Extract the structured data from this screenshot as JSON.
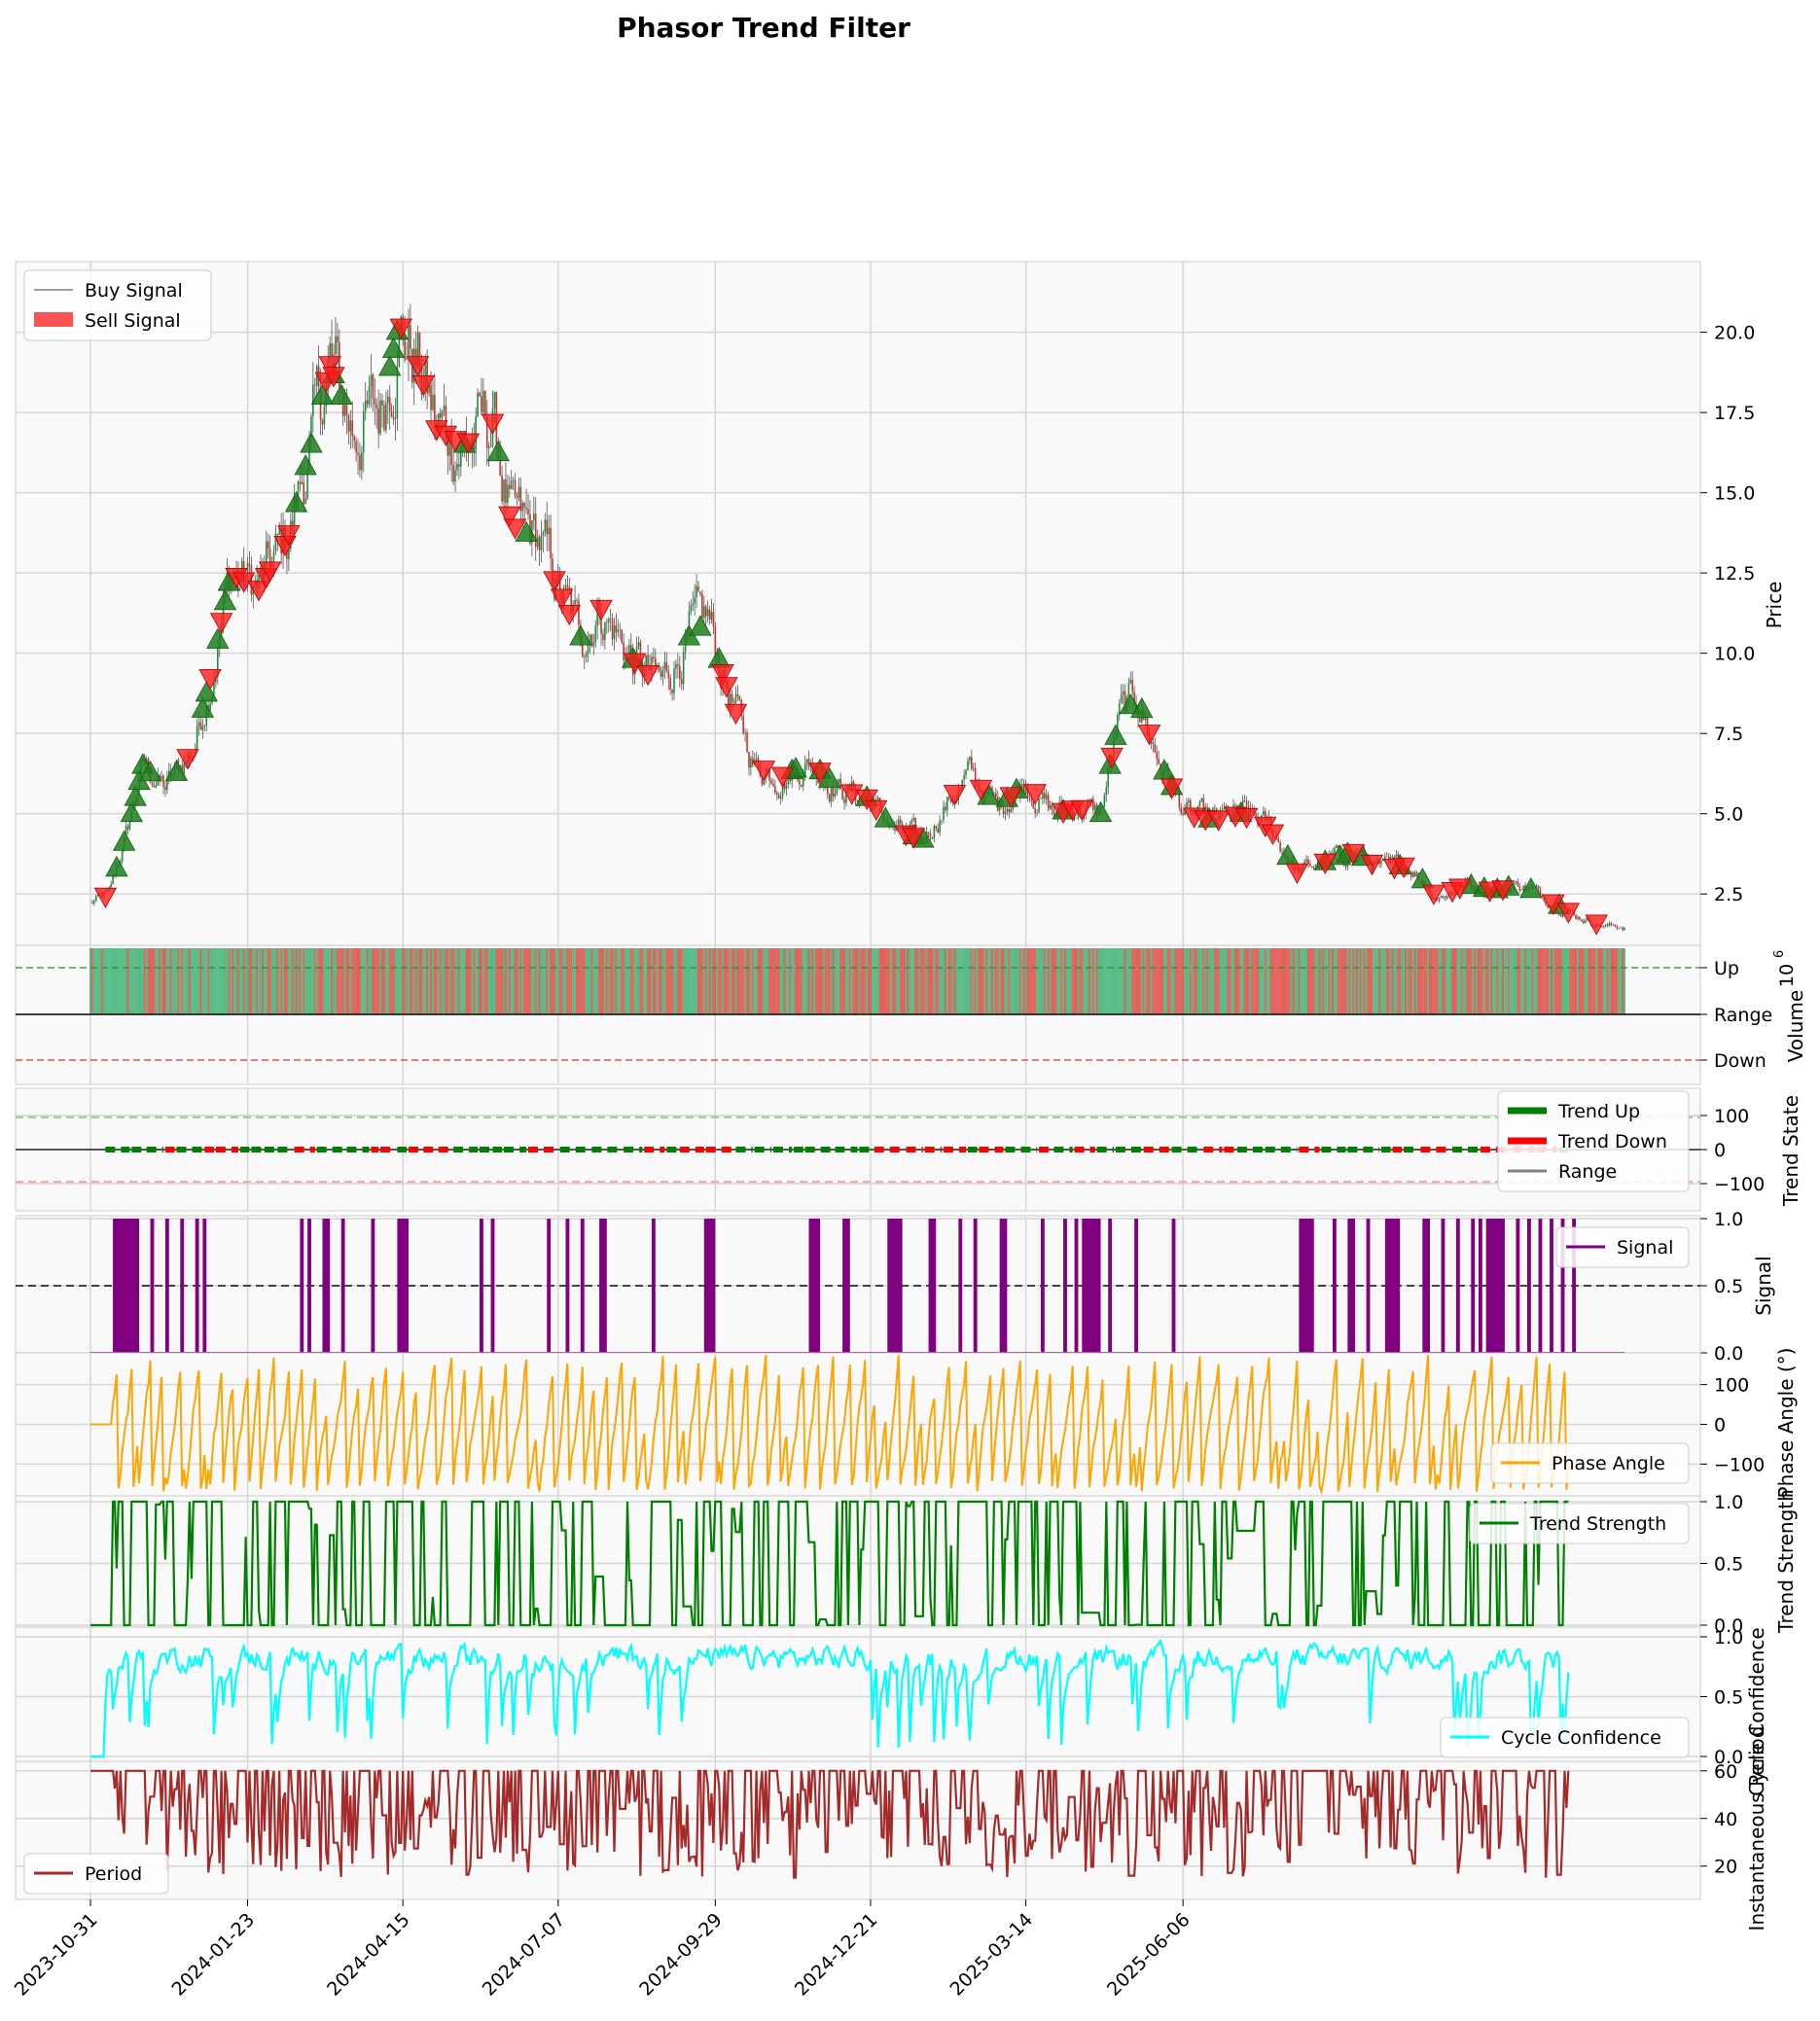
{
  "figure_title": "Phasor Trend Filter",
  "colors": {
    "panel_bg": "#f9f9f9",
    "grid": "#d6d6d6",
    "buy": "#1f7f1f",
    "sell": "#ff1a1a",
    "vol_up": "#46b57a",
    "vol_down": "#e0524a",
    "trend_up": "#008000",
    "trend_down": "#ff0000",
    "range": "#808080",
    "signal": "#800080",
    "phase": "#ffa500",
    "strength": "#008000",
    "confidence": "#00ffff",
    "period": "#a52a2a"
  },
  "chart_data": [
    {
      "type": "line",
      "panel": "price",
      "ylabel": "Price",
      "yticks": [
        "2.5",
        "5.0",
        "7.5",
        "10.0",
        "12.5",
        "15.0",
        "17.5",
        "20.0"
      ],
      "ylim": [
        0.9,
        22.2
      ],
      "legend": [
        "Buy Signal",
        "Sell Signal"
      ],
      "legend_loc": "upper-left",
      "anchors": [
        {
          "day": 0,
          "price": 2.2
        },
        {
          "day": 10,
          "price": 2.5
        },
        {
          "day": 20,
          "price": 4.5
        },
        {
          "day": 28,
          "price": 6.5
        },
        {
          "day": 40,
          "price": 5.8
        },
        {
          "day": 55,
          "price": 7.0
        },
        {
          "day": 65,
          "price": 9.5
        },
        {
          "day": 75,
          "price": 12.5
        },
        {
          "day": 90,
          "price": 12.0
        },
        {
          "day": 105,
          "price": 13.5
        },
        {
          "day": 118,
          "price": 16.5
        },
        {
          "day": 128,
          "price": 19.0
        },
        {
          "day": 140,
          "price": 17.0
        },
        {
          "day": 155,
          "price": 17.5
        },
        {
          "day": 165,
          "price": 20.3
        },
        {
          "day": 175,
          "price": 19.0
        },
        {
          "day": 185,
          "price": 17.0
        },
        {
          "day": 200,
          "price": 16.5
        },
        {
          "day": 215,
          "price": 17.2
        },
        {
          "day": 225,
          "price": 14.0
        },
        {
          "day": 240,
          "price": 13.5
        },
        {
          "day": 250,
          "price": 12.0
        },
        {
          "day": 262,
          "price": 10.5
        },
        {
          "day": 272,
          "price": 11.5
        },
        {
          "day": 290,
          "price": 9.8
        },
        {
          "day": 305,
          "price": 9.0
        },
        {
          "day": 320,
          "price": 10.5
        },
        {
          "day": 330,
          "price": 11.0
        },
        {
          "day": 340,
          "price": 9.0
        },
        {
          "day": 355,
          "price": 6.5
        },
        {
          "day": 370,
          "price": 6.2
        },
        {
          "day": 385,
          "price": 6.6
        },
        {
          "day": 400,
          "price": 5.8
        },
        {
          "day": 415,
          "price": 5.5
        },
        {
          "day": 430,
          "price": 4.5
        },
        {
          "day": 445,
          "price": 4.2
        },
        {
          "day": 460,
          "price": 5.5
        },
        {
          "day": 470,
          "price": 6.2
        },
        {
          "day": 485,
          "price": 5.2
        },
        {
          "day": 500,
          "price": 6.0
        },
        {
          "day": 515,
          "price": 5.0
        },
        {
          "day": 528,
          "price": 5.2
        },
        {
          "day": 540,
          "price": 5.0
        },
        {
          "day": 550,
          "price": 8.0
        },
        {
          "day": 560,
          "price": 8.6
        },
        {
          "day": 570,
          "price": 6.8
        },
        {
          "day": 585,
          "price": 5.0
        },
        {
          "day": 600,
          "price": 4.8
        },
        {
          "day": 615,
          "price": 5.0
        },
        {
          "day": 630,
          "price": 4.6
        },
        {
          "day": 645,
          "price": 3.2
        },
        {
          "day": 660,
          "price": 3.5
        },
        {
          "day": 675,
          "price": 3.8
        },
        {
          "day": 690,
          "price": 3.3
        },
        {
          "day": 705,
          "price": 3.4
        },
        {
          "day": 720,
          "price": 2.4
        },
        {
          "day": 735,
          "price": 2.8
        },
        {
          "day": 750,
          "price": 2.6
        },
        {
          "day": 765,
          "price": 2.8
        },
        {
          "day": 780,
          "price": 2.3
        },
        {
          "day": 795,
          "price": 1.8
        },
        {
          "day": 810,
          "price": 1.5
        },
        {
          "day": 820,
          "price": 1.5
        }
      ],
      "buy_days": [
        14,
        18,
        22,
        24,
        26,
        28,
        32,
        46,
        60,
        62,
        68,
        72,
        74,
        110,
        115,
        118,
        124,
        130,
        134,
        160,
        162,
        164,
        200,
        218,
        233,
        262,
        290,
        320,
        326,
        336,
        375,
        377,
        390,
        395,
        415,
        425,
        440,
        445,
        480,
        490,
        495,
        520,
        540,
        545,
        548,
        556,
        562,
        574,
        578,
        598,
        615,
        640,
        660,
        668,
        672,
        680,
        700,
        712,
        738,
        745,
        752,
        758,
        770,
        785
      ],
      "sell_days": [
        8,
        52,
        64,
        70,
        78,
        82,
        90,
        94,
        96,
        104,
        106,
        126,
        128,
        130,
        166,
        175,
        178,
        185,
        190,
        195,
        202,
        215,
        224,
        227,
        248,
        252,
        256,
        273,
        291,
        298,
        338,
        340,
        345,
        360,
        370,
        390,
        407,
        415,
        420,
        436,
        440,
        462,
        476,
        492,
        505,
        520,
        525,
        530,
        546,
        566,
        578,
        590,
        596,
        603,
        612,
        618,
        628,
        632,
        645,
        660,
        675,
        685,
        697,
        702,
        718,
        728,
        732,
        748,
        755,
        782,
        790,
        805
      ]
    },
    {
      "type": "bar",
      "panel": "volume",
      "ylabel": "Volume",
      "exponent_label": "10",
      "exponent_power": "6",
      "level_labels": [
        "Up",
        "Range",
        "Down"
      ]
    },
    {
      "type": "line",
      "panel": "trend_state",
      "ylabel": "Trend State",
      "yticks": [
        "100",
        "0",
        "−100"
      ],
      "ylim": [
        -180,
        180
      ],
      "legend": [
        "Trend Up",
        "Trend Down",
        "Range"
      ],
      "legend_loc": "upper-right"
    },
    {
      "type": "area",
      "panel": "signal",
      "ylabel": "Signal",
      "yticks": [
        "0.0",
        "0.5",
        "1.0"
      ],
      "ylim": [
        0,
        1
      ],
      "legend": [
        "Signal"
      ],
      "legend_loc": "upper-right",
      "on_intervals": [
        [
          12,
          26
        ],
        [
          32,
          34
        ],
        [
          40,
          42
        ],
        [
          48,
          50
        ],
        [
          56,
          58
        ],
        [
          60,
          62
        ],
        [
          112,
          114
        ],
        [
          116,
          118
        ],
        [
          124,
          128
        ],
        [
          134,
          136
        ],
        [
          150,
          152
        ],
        [
          164,
          170
        ],
        [
          208,
          210
        ],
        [
          214,
          216
        ],
        [
          244,
          246
        ],
        [
          254,
          256
        ],
        [
          262,
          264
        ],
        [
          272,
          276
        ],
        [
          300,
          302
        ],
        [
          328,
          334
        ],
        [
          384,
          390
        ],
        [
          402,
          406
        ],
        [
          426,
          434
        ],
        [
          448,
          452
        ],
        [
          464,
          466
        ],
        [
          472,
          474
        ],
        [
          486,
          490
        ],
        [
          508,
          510
        ],
        [
          520,
          522
        ],
        [
          526,
          528
        ],
        [
          530,
          540
        ],
        [
          544,
          546
        ],
        [
          558,
          560
        ],
        [
          578,
          580
        ],
        [
          646,
          654
        ],
        [
          664,
          666
        ],
        [
          672,
          676
        ],
        [
          682,
          684
        ],
        [
          692,
          700
        ],
        [
          712,
          716
        ],
        [
          722,
          724
        ],
        [
          730,
          732
        ],
        [
          738,
          740
        ],
        [
          742,
          744
        ],
        [
          746,
          756
        ],
        [
          762,
          764
        ],
        [
          768,
          770
        ],
        [
          774,
          776
        ],
        [
          780,
          782
        ],
        [
          786,
          788
        ],
        [
          792,
          794
        ]
      ]
    },
    {
      "type": "line",
      "panel": "phase",
      "ylabel": "Phase Angle (°)",
      "yticks": [
        "−100",
        "0",
        "100"
      ],
      "ylim": [
        -180,
        180
      ],
      "legend": [
        "Phase Angle"
      ],
      "legend_loc": "lower-right"
    },
    {
      "type": "line",
      "panel": "strength",
      "ylabel": "Trend Strength",
      "yticks": [
        "0.0",
        "0.5",
        "1.0"
      ],
      "ylim": [
        0,
        1
      ],
      "legend": [
        "Trend Strength"
      ],
      "legend_loc": "upper-right"
    },
    {
      "type": "line",
      "panel": "confidence",
      "ylabel": "Cycle Confidence",
      "yticks": [
        "0.0",
        "0.5",
        "1.0"
      ],
      "ylim": [
        0,
        1
      ],
      "legend": [
        "Cycle Confidence"
      ],
      "legend_loc": "lower-right"
    },
    {
      "type": "line",
      "panel": "period",
      "ylabel": "Instantaneous Period",
      "yticks": [
        "20",
        "40",
        "60"
      ],
      "ylim": [
        6,
        64
      ],
      "legend": [
        "Period"
      ],
      "legend_loc": "lower-left"
    }
  ],
  "x_axis": {
    "tick_labels": [
      "2023-10-31",
      "2024-01-23",
      "2024-04-15",
      "2024-07-07",
      "2024-09-29",
      "2024-12-21",
      "2025-03-14",
      "2025-06-06"
    ],
    "tick_days": [
      0,
      84,
      167,
      250,
      334,
      417,
      500,
      584
    ],
    "total_days": 820
  }
}
